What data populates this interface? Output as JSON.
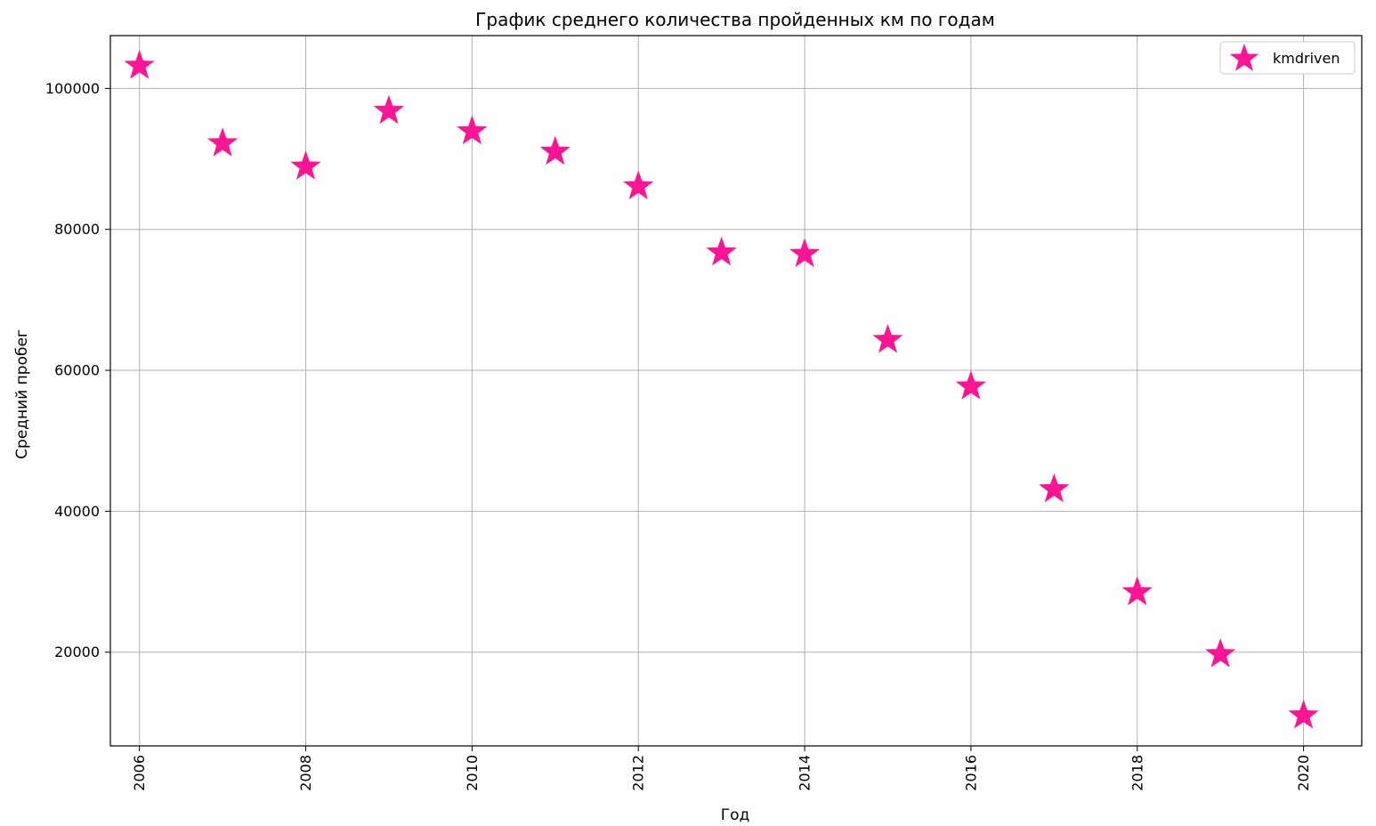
{
  "chart_data": {
    "type": "scatter",
    "title": "График среднего количества пройденных км по годам",
    "xlabel": "Год",
    "ylabel": "Средний пробег",
    "x": [
      2006,
      2007,
      2008,
      2009,
      2010,
      2011,
      2012,
      2013,
      2014,
      2015,
      2016,
      2017,
      2018,
      2019,
      2020
    ],
    "series": [
      {
        "name": "kmdriven",
        "marker": "star",
        "color": "#ff1493",
        "values": [
          103200,
          92200,
          88900,
          96800,
          93900,
          91000,
          86100,
          76700,
          76500,
          64300,
          57700,
          43100,
          28500,
          19700,
          11000
        ]
      }
    ],
    "xlim": [
      2005.65,
      2020.7
    ],
    "ylim": [
      6700,
      107500
    ],
    "xticks": [
      2006,
      2008,
      2010,
      2012,
      2014,
      2016,
      2018,
      2020
    ],
    "xtick_labels": [
      "2006",
      "2008",
      "2010",
      "2012",
      "2014",
      "2016",
      "2018",
      "2020"
    ],
    "yticks": [
      20000,
      40000,
      60000,
      80000,
      100000
    ],
    "ytick_labels": [
      "20000",
      "40000",
      "60000",
      "80000",
      "100000"
    ],
    "grid": true,
    "legend_position": "top-right",
    "x_tick_rotation": "vertical"
  }
}
